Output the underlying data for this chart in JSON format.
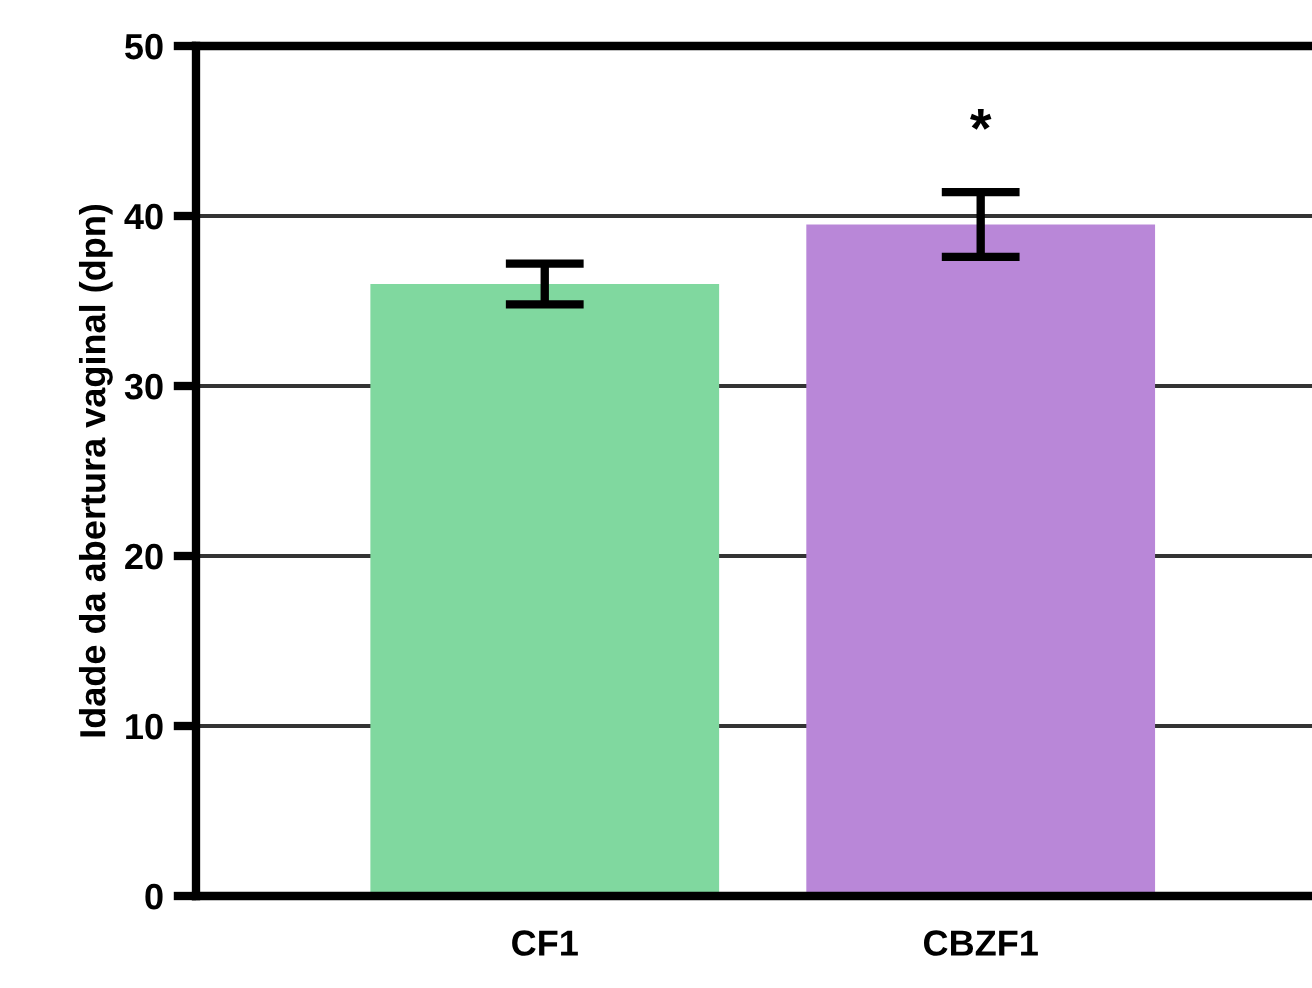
{
  "chart_data": {
    "type": "bar",
    "ylabel": "Idade da abertura vaginal (dpn)",
    "categories": [
      "CF1",
      "CBZF1"
    ],
    "values": [
      36.0,
      39.5
    ],
    "colors": [
      "#80d89f",
      "#b987d8"
    ],
    "errors": [
      1.2,
      1.9
    ],
    "ylim": [
      0,
      50
    ],
    "yticks": [
      0,
      10,
      20,
      30,
      40,
      50
    ],
    "grid": "y",
    "annotations": [
      "*"
    ]
  }
}
